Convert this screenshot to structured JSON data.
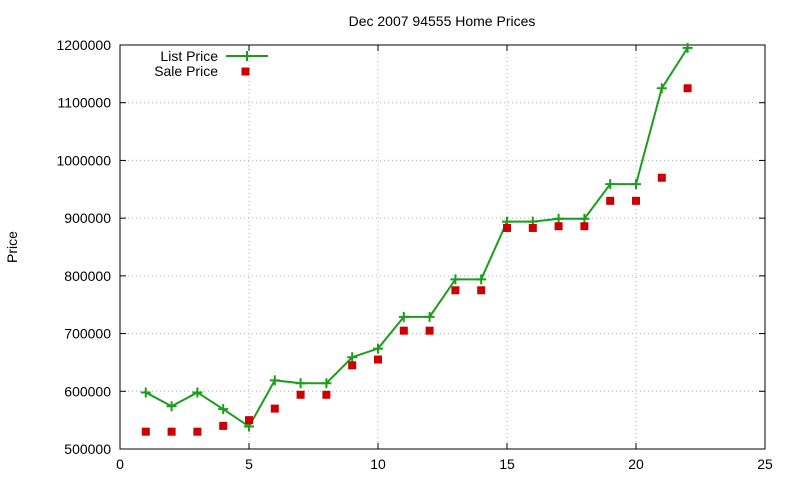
{
  "chart_data": {
    "type": "line",
    "title": "Dec 2007 94555 Home Prices",
    "xlabel": "",
    "ylabel": "Price",
    "xlim": [
      0,
      25
    ],
    "ylim": [
      500000,
      1200000
    ],
    "x_ticks": [
      0,
      5,
      10,
      15,
      20,
      25
    ],
    "y_ticks": [
      500000,
      600000,
      700000,
      800000,
      900000,
      1000000,
      1100000,
      1200000
    ],
    "x_tick_labels": [
      "0",
      "5",
      "10",
      "15",
      "20",
      "25"
    ],
    "y_tick_labels": [
      "500000",
      "600000",
      "700000",
      "800000",
      "900000",
      "1000000",
      "1100000",
      "1200000"
    ],
    "grid": true,
    "legend_position": "top-left",
    "series": [
      {
        "name": "List Price",
        "style": "line-with-plus-markers",
        "color": "#1a9e1a",
        "x": [
          1,
          2,
          3,
          4,
          5,
          6,
          7,
          8,
          9,
          10,
          11,
          12,
          13,
          14,
          15,
          16,
          17,
          18,
          19,
          20,
          21,
          22
        ],
        "values": [
          598000,
          574000,
          598000,
          569000,
          539000,
          619000,
          614000,
          614000,
          659000,
          674000,
          729000,
          729000,
          794000,
          794000,
          894000,
          894000,
          899000,
          899000,
          959000,
          959000,
          1125000,
          1195000
        ]
      },
      {
        "name": "Sale Price",
        "style": "square-markers",
        "color": "#cc0000",
        "x": [
          1,
          2,
          3,
          4,
          5,
          6,
          7,
          8,
          9,
          10,
          11,
          12,
          13,
          14,
          15,
          16,
          17,
          18,
          19,
          20,
          21,
          22
        ],
        "values": [
          530000,
          530000,
          530000,
          540000,
          550000,
          570000,
          594000,
          594000,
          645000,
          655000,
          705000,
          705000,
          775000,
          775000,
          883000,
          883000,
          886000,
          886000,
          930000,
          930000,
          970000,
          1125000
        ]
      }
    ]
  }
}
